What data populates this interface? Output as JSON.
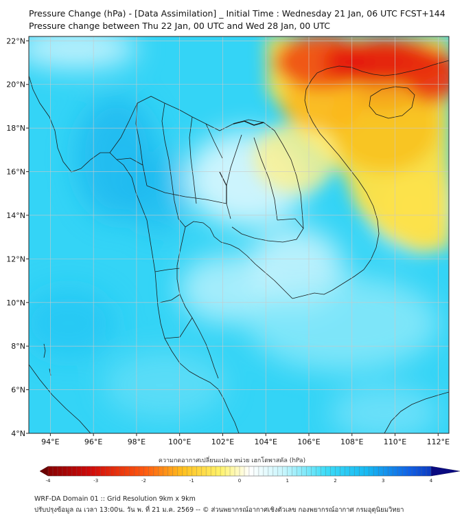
{
  "title_line1": "Pressure Change (hPa) - [Data Assimilation] _ Initial Time : Wednesday 21 Jan, 06 UTC FCST+144",
  "title_line2": "Pressure change between Thu 22 Jan, 00 UTC and Wed 28 Jan, 00 UTC",
  "map": {
    "lon_ticks": [
      "94°E",
      "96°E",
      "98°E",
      "100°E",
      "102°E",
      "104°E",
      "106°E",
      "108°E",
      "110°E",
      "112°E"
    ],
    "lat_ticks": [
      "22°N",
      "20°N",
      "18°N",
      "16°N",
      "14°N",
      "12°N",
      "10°N",
      "8°N",
      "6°N",
      "4°N"
    ],
    "lon_range": [
      93,
      112.5
    ],
    "lat_range": [
      4,
      22.2
    ]
  },
  "colorbar": {
    "label": "ความกดอากาศเปลี่ยนแปลง หน่วย เฮกโตพาสคัล (hPa)",
    "ticks": [
      "-4",
      "-3",
      "-2",
      "-1",
      "0",
      "1",
      "2",
      "3",
      "4"
    ],
    "range": [
      -4,
      4
    ]
  },
  "footer_line1": "WRF-DA Domain 01 :: Grid Resolution 9km x 9km",
  "footer_line2": "ปรับปรุงข้อมูล ณ เวลา 13:00น. วัน พ. ที่ 21 ม.ค. 2569 -- © ส่วนพยากรณ์อากาศเชิงตัวเลข กองพยากรณ์อากาศ กรมอุตุนิยมวิทยา",
  "colors": {
    "cyan": "#22d0f5",
    "light_cyan": "#8eecfb",
    "white": "#ffffff",
    "yellow": "#fde23a",
    "orange": "#f59a1a",
    "red": "#e0120c"
  }
}
